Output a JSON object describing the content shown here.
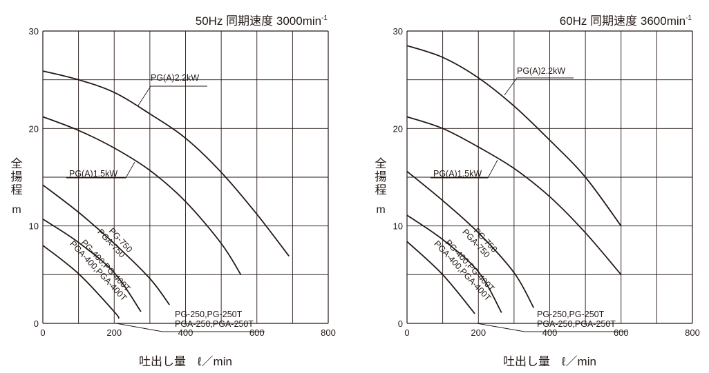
{
  "chart_data": [
    {
      "type": "line",
      "title": "50Hz 同期速度 3000min",
      "title_sup": "-1",
      "ylabel": "全揚程",
      "yunit": "m",
      "xlabel": "吐出し量　ℓ／min",
      "xlim": [
        0,
        800
      ],
      "ylim": [
        0,
        30
      ],
      "xticks": [
        0,
        200,
        400,
        600,
        800
      ],
      "yticks": [
        0,
        10,
        20,
        30
      ],
      "grid": true,
      "series": [
        {
          "name": "PG(A)2.2kW",
          "points": [
            [
              0,
              25.9
            ],
            [
              100,
              25
            ],
            [
              200,
              23.7
            ],
            [
              300,
              21.5
            ],
            [
              400,
              19
            ],
            [
              500,
              15.5
            ],
            [
              600,
              11.2
            ],
            [
              690,
              6.9
            ]
          ]
        },
        {
          "name": "PG(A)1.5kW",
          "points": [
            [
              0,
              21.2
            ],
            [
              100,
              19.8
            ],
            [
              200,
              18
            ],
            [
              300,
              15.7
            ],
            [
              400,
              12.5
            ],
            [
              500,
              8.2
            ],
            [
              555,
              5
            ]
          ]
        },
        {
          "name": "PG-750 / PGA-750",
          "points": [
            [
              0,
              14.2
            ],
            [
              100,
              11.4
            ],
            [
              200,
              8.2
            ],
            [
              300,
              4.6
            ],
            [
              355,
              1.9
            ]
          ]
        },
        {
          "name": "PG-400,PG-400T / PGA-400,PGA-400T",
          "points": [
            [
              0,
              10.7
            ],
            [
              100,
              8.3
            ],
            [
              200,
              5.2
            ],
            [
              275,
              1.2
            ]
          ]
        },
        {
          "name": "PG-250,PG-250T / PGA-250,PGA-250T",
          "points": [
            [
              0,
              8
            ],
            [
              100,
              5.1
            ],
            [
              200,
              1.2
            ],
            [
              213,
              0.5
            ]
          ]
        }
      ]
    },
    {
      "type": "line",
      "title": "60Hz 同期速度 3600min",
      "title_sup": "-1",
      "ylabel": "全揚程",
      "yunit": "m",
      "xlabel": "吐出し量　ℓ／min",
      "xlim": [
        0,
        800
      ],
      "ylim": [
        0,
        30
      ],
      "xticks": [
        0,
        200,
        400,
        600,
        800
      ],
      "yticks": [
        0,
        10,
        20,
        30
      ],
      "grid": true,
      "series": [
        {
          "name": "PG(A)2.2kW",
          "points": [
            [
              0,
              28.5
            ],
            [
              100,
              27.3
            ],
            [
              200,
              25.2
            ],
            [
              300,
              22.3
            ],
            [
              400,
              18.8
            ],
            [
              500,
              15
            ],
            [
              600,
              10
            ]
          ]
        },
        {
          "name": "PG(A)1.5kW",
          "points": [
            [
              0,
              21.2
            ],
            [
              100,
              20
            ],
            [
              200,
              18.1
            ],
            [
              300,
              15.9
            ],
            [
              400,
              13
            ],
            [
              500,
              9.3
            ],
            [
              600,
              5
            ]
          ]
        },
        {
          "name": "PG-750 / PGA-750",
          "points": [
            [
              0,
              15.6
            ],
            [
              100,
              12.6
            ],
            [
              200,
              9.3
            ],
            [
              300,
              5.2
            ],
            [
              355,
              1.6
            ]
          ]
        },
        {
          "name": "PG-400,PG-400T / PGA-400,PGA-400T",
          "points": [
            [
              0,
              11.1
            ],
            [
              100,
              8.6
            ],
            [
              200,
              5.3
            ],
            [
              265,
              1.1
            ]
          ]
        },
        {
          "name": "PG-250,PG-250T / PGA-250,PGA-250T",
          "points": [
            [
              0,
              8.4
            ],
            [
              100,
              5
            ],
            [
              190,
              1
            ]
          ]
        }
      ]
    }
  ],
  "labels": {
    "kw22": "PG(A)2.2kW",
    "kw15": "PG(A)1.5kW",
    "pg750a": "PG-750",
    "pg750b": "PGA-750",
    "pg400a": "PG-400,PG-400T",
    "pg400b": "PGA-400,PGA-400T",
    "pg250a": "PG-250,PG-250T",
    "pg250b": "PGA-250,PGA-250T"
  }
}
